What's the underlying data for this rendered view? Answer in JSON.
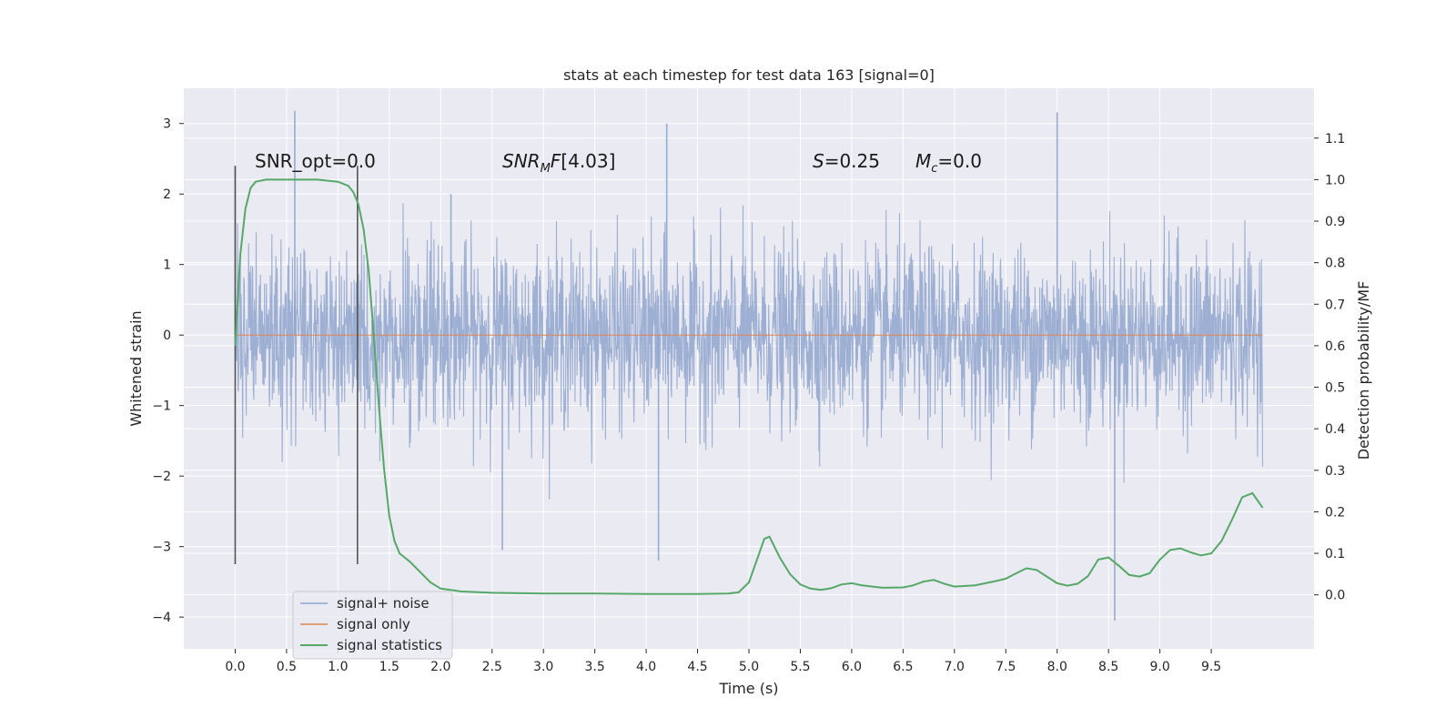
{
  "chart_data": {
    "type": "line",
    "title": "stats at each timestep for test data 163 [signal=0]",
    "xlabel": "Time (s)",
    "ylabel": "Whitened strain",
    "y2label": "Detection probability/MF",
    "xlim": [
      -0.5,
      10.5
    ],
    "ylim": [
      -4.45,
      3.5
    ],
    "y2lim": [
      -0.13,
      1.22
    ],
    "x_ticks": [
      "0.0",
      "0.5",
      "1.0",
      "1.5",
      "2.0",
      "2.5",
      "3.0",
      "3.5",
      "4.0",
      "4.5",
      "5.0",
      "5.5",
      "6.0",
      "6.5",
      "7.0",
      "7.5",
      "8.0",
      "8.5",
      "9.0",
      "9.5"
    ],
    "y_ticks": [
      "3",
      "2",
      "1",
      "0",
      "−1",
      "−2",
      "−3",
      "−4"
    ],
    "y2_ticks": [
      "1.1",
      "1.0",
      "0.9",
      "0.8",
      "0.7",
      "0.6",
      "0.5",
      "0.4",
      "0.3",
      "0.2",
      "0.1",
      "0.0"
    ],
    "grid": true,
    "legend_position": "lower-left",
    "annotations": {
      "snr_opt": "SNR_opt=0.0",
      "snr_mf": "[4.03]",
      "s_val": "=0.25",
      "mc_val": "=0.0"
    },
    "vertical_markers": [
      0.0,
      1.19
    ],
    "series": [
      {
        "name": "signal+ noise",
        "axis": "left",
        "color": "#8fa4cc",
        "envelope": {
          "t_start": 0.0,
          "t_end": 10.0,
          "typical_upper": 1.9,
          "typical_lower": -1.9,
          "max": 3.18,
          "min": -4.05
        }
      },
      {
        "name": "signal only",
        "axis": "left",
        "color": "#dd8452",
        "x": [
          0.0,
          10.0
        ],
        "values": [
          0.0,
          0.0
        ]
      },
      {
        "name": "signal statistics",
        "axis": "right",
        "color": "#55a868",
        "x": [
          0.0,
          0.05,
          0.1,
          0.15,
          0.2,
          0.3,
          0.5,
          0.8,
          1.0,
          1.1,
          1.15,
          1.2,
          1.25,
          1.3,
          1.35,
          1.4,
          1.45,
          1.5,
          1.55,
          1.6,
          1.7,
          1.8,
          1.9,
          2.0,
          2.2,
          2.5,
          3.0,
          3.5,
          4.0,
          4.5,
          4.8,
          4.9,
          5.0,
          5.1,
          5.15,
          5.2,
          5.3,
          5.4,
          5.5,
          5.6,
          5.7,
          5.8,
          5.9,
          6.0,
          6.1,
          6.3,
          6.5,
          6.6,
          6.7,
          6.8,
          6.9,
          7.0,
          7.2,
          7.4,
          7.5,
          7.6,
          7.7,
          7.8,
          7.9,
          8.0,
          8.1,
          8.2,
          8.3,
          8.4,
          8.5,
          8.6,
          8.7,
          8.8,
          8.9,
          9.0,
          9.1,
          9.2,
          9.3,
          9.4,
          9.5,
          9.6,
          9.7,
          9.8,
          9.9,
          10.0
        ],
        "values": [
          0.6,
          0.82,
          0.93,
          0.98,
          0.995,
          1.0,
          1.0,
          1.0,
          0.995,
          0.985,
          0.97,
          0.94,
          0.88,
          0.78,
          0.62,
          0.45,
          0.3,
          0.19,
          0.13,
          0.1,
          0.08,
          0.055,
          0.03,
          0.015,
          0.008,
          0.005,
          0.003,
          0.003,
          0.002,
          0.002,
          0.003,
          0.006,
          0.03,
          0.1,
          0.135,
          0.14,
          0.09,
          0.05,
          0.025,
          0.015,
          0.012,
          0.016,
          0.025,
          0.028,
          0.023,
          0.017,
          0.018,
          0.023,
          0.032,
          0.036,
          0.027,
          0.02,
          0.023,
          0.033,
          0.039,
          0.052,
          0.064,
          0.06,
          0.044,
          0.028,
          0.022,
          0.027,
          0.045,
          0.085,
          0.09,
          0.07,
          0.048,
          0.044,
          0.052,
          0.085,
          0.108,
          0.112,
          0.102,
          0.095,
          0.1,
          0.13,
          0.18,
          0.235,
          0.245,
          0.21
        ]
      }
    ]
  }
}
